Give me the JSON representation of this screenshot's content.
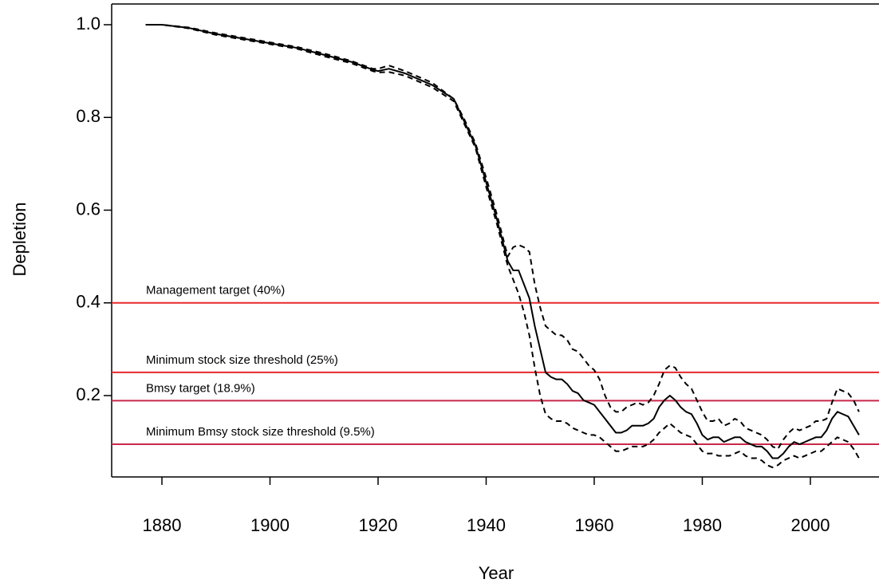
{
  "chart_data": {
    "type": "line",
    "x_label": "Year",
    "y_label": "Depletion",
    "xlim": [
      1870.7,
      2012.7
    ],
    "ylim": [
      0.0245,
      1.0447
    ],
    "xticks": [
      1880,
      1900,
      1920,
      1940,
      1960,
      1980,
      2000
    ],
    "yticks": [
      0.2,
      0.4,
      0.6,
      0.8,
      {
        "value": 1,
        "label": "1.0"
      }
    ],
    "x": [
      1877,
      1880,
      1885,
      1890,
      1895,
      1900,
      1905,
      1910,
      1915,
      1919,
      1920,
      1922,
      1925,
      1930,
      1934,
      1936,
      1938,
      1940,
      1942,
      1944,
      1945,
      1946,
      1947,
      1948,
      1949,
      1950,
      1951,
      1952,
      1953,
      1954,
      1955,
      1956,
      1957,
      1958,
      1959,
      1960,
      1961,
      1962,
      1963,
      1964,
      1965,
      1966,
      1967,
      1968,
      1969,
      1970,
      1971,
      1972,
      1973,
      1974,
      1975,
      1976,
      1977,
      1978,
      1979,
      1980,
      1981,
      1982,
      1983,
      1984,
      1985,
      1986,
      1987,
      1988,
      1989,
      1990,
      1991,
      1992,
      1993,
      1994,
      1995,
      1996,
      1997,
      1998,
      1999,
      2000,
      2001,
      2002,
      2003,
      2004,
      2005,
      2006,
      2007,
      2008,
      2009
    ],
    "series": [
      {
        "color": "#000000",
        "style": "solid",
        "values": [
          1.0,
          1.0,
          0.993,
          0.98,
          0.97,
          0.96,
          0.95,
          0.935,
          0.92,
          0.903,
          0.9,
          0.905,
          0.895,
          0.87,
          0.84,
          0.79,
          0.74,
          0.66,
          0.58,
          0.49,
          0.47,
          0.47,
          0.44,
          0.41,
          0.35,
          0.3,
          0.25,
          0.24,
          0.235,
          0.235,
          0.225,
          0.21,
          0.205,
          0.19,
          0.185,
          0.18,
          0.165,
          0.15,
          0.135,
          0.12,
          0.12,
          0.125,
          0.135,
          0.135,
          0.135,
          0.14,
          0.15,
          0.175,
          0.19,
          0.2,
          0.19,
          0.175,
          0.165,
          0.16,
          0.14,
          0.115,
          0.105,
          0.11,
          0.11,
          0.1,
          0.105,
          0.11,
          0.11,
          0.1,
          0.095,
          0.09,
          0.09,
          0.08,
          0.065,
          0.065,
          0.075,
          0.09,
          0.1,
          0.095,
          0.1,
          0.105,
          0.11,
          0.11,
          0.125,
          0.15,
          0.165,
          0.16,
          0.155,
          0.135,
          0.115
        ]
      },
      {
        "color": "#000000",
        "style": "dashed",
        "values": [
          1.0,
          1.0,
          0.994,
          0.982,
          0.972,
          0.962,
          0.952,
          0.938,
          0.922,
          0.905,
          0.905,
          0.912,
          0.9,
          0.875,
          0.84,
          0.795,
          0.745,
          0.67,
          0.59,
          0.5,
          0.52,
          0.525,
          0.52,
          0.51,
          0.44,
          0.39,
          0.35,
          0.34,
          0.33,
          0.33,
          0.32,
          0.3,
          0.295,
          0.28,
          0.265,
          0.255,
          0.235,
          0.2,
          0.175,
          0.165,
          0.165,
          0.175,
          0.18,
          0.185,
          0.18,
          0.185,
          0.2,
          0.225,
          0.255,
          0.265,
          0.26,
          0.24,
          0.225,
          0.215,
          0.19,
          0.165,
          0.145,
          0.145,
          0.15,
          0.135,
          0.14,
          0.15,
          0.145,
          0.13,
          0.125,
          0.12,
          0.115,
          0.105,
          0.09,
          0.085,
          0.105,
          0.12,
          0.13,
          0.125,
          0.13,
          0.135,
          0.145,
          0.145,
          0.15,
          0.185,
          0.215,
          0.21,
          0.205,
          0.19,
          0.165
        ]
      },
      {
        "color": "#000000",
        "style": "dashed",
        "values": [
          1.0,
          1.0,
          0.992,
          0.978,
          0.968,
          0.958,
          0.948,
          0.932,
          0.917,
          0.9,
          0.897,
          0.898,
          0.89,
          0.865,
          0.835,
          0.785,
          0.735,
          0.65,
          0.57,
          0.48,
          0.45,
          0.42,
          0.38,
          0.33,
          0.26,
          0.2,
          0.16,
          0.15,
          0.145,
          0.145,
          0.14,
          0.13,
          0.125,
          0.12,
          0.115,
          0.115,
          0.11,
          0.1,
          0.09,
          0.08,
          0.08,
          0.085,
          0.09,
          0.09,
          0.09,
          0.095,
          0.105,
          0.12,
          0.13,
          0.14,
          0.13,
          0.12,
          0.115,
          0.11,
          0.095,
          0.08,
          0.075,
          0.075,
          0.07,
          0.07,
          0.07,
          0.075,
          0.08,
          0.07,
          0.065,
          0.065,
          0.06,
          0.05,
          0.045,
          0.05,
          0.06,
          0.065,
          0.07,
          0.065,
          0.07,
          0.075,
          0.08,
          0.08,
          0.09,
          0.1,
          0.11,
          0.105,
          0.1,
          0.085,
          0.065
        ]
      }
    ],
    "hlines": [
      {
        "value": 0.4,
        "label": "Management target (40%)",
        "color": "#e8282e"
      },
      {
        "value": 0.25,
        "label": "Minimum stock size threshold (25%)",
        "color": "#e8282e"
      },
      {
        "value": 0.189,
        "label": "Bmsy target (18.9%)",
        "color": "#c8284a"
      },
      {
        "value": 0.095,
        "label": "Minimum Bmsy stock size threshold (9.5%)",
        "color": "#c8284a"
      }
    ]
  }
}
